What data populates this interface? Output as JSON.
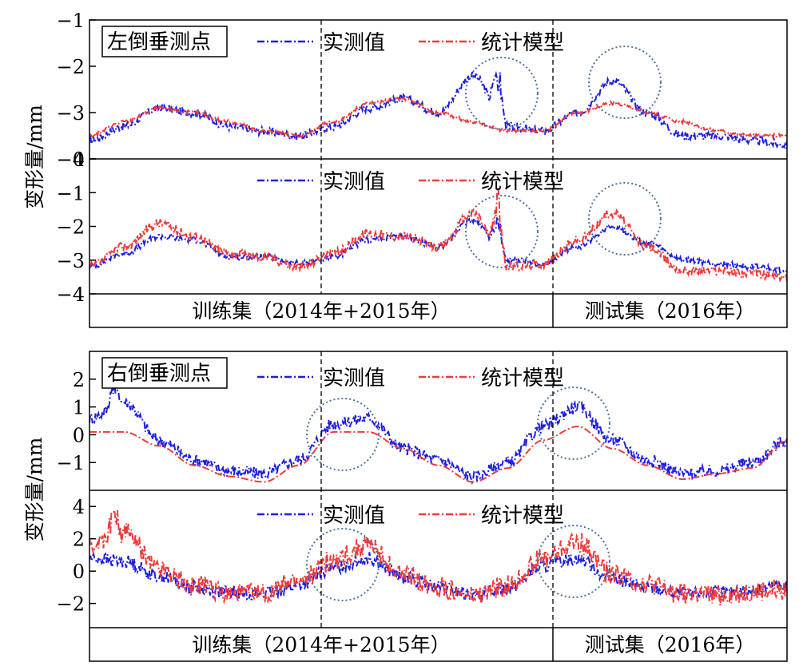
{
  "colors": {
    "measured": "#1f1fe0",
    "model": "#ee3a3a",
    "circle": "#4a6fa0",
    "axis": "#000000"
  },
  "chart_data": [
    {
      "type": "line",
      "title": "左倒垂测点",
      "ylabel": "变形量/mm",
      "periods": [
        "训练集（2014年+2015年）",
        "测试集（2016年）"
      ],
      "subplots": [
        {
          "ylim": [
            -4,
            -1
          ],
          "ytick_values": [
            -1,
            -2,
            -3,
            -4
          ],
          "ytick_labels": [
            "−1",
            "−2",
            "−3",
            "−4"
          ],
          "legend": [
            "实测值",
            "统计模型"
          ],
          "series": [
            {
              "name": "实测值",
              "x": [
                0,
                0.05,
                0.1,
                0.15,
                0.2,
                0.25,
                0.3,
                0.35,
                0.4,
                0.45,
                0.5,
                0.55,
                0.6,
                0.65,
                0.7,
                0.75,
                0.8,
                0.85,
                0.9,
                0.95,
                1.0
              ],
              "y": [
                -3.6,
                -3.3,
                -2.9,
                -3.0,
                -3.3,
                -3.4,
                -3.5,
                -3.3,
                -2.9,
                -2.7,
                -3.0,
                -2.2,
                -3.3,
                -3.4,
                -3.0,
                -2.3,
                -3.0,
                -3.5,
                -3.5,
                -3.6,
                -3.7
              ]
            },
            {
              "name": "统计模型",
              "x": [
                0,
                0.05,
                0.1,
                0.15,
                0.2,
                0.25,
                0.3,
                0.35,
                0.4,
                0.45,
                0.5,
                0.55,
                0.6,
                0.65,
                0.7,
                0.75,
                0.8,
                0.85,
                0.9,
                0.95,
                1.0
              ],
              "y": [
                -3.5,
                -3.2,
                -2.9,
                -3.0,
                -3.2,
                -3.4,
                -3.5,
                -3.2,
                -2.8,
                -2.7,
                -3.0,
                -3.2,
                -3.4,
                -3.4,
                -3.0,
                -2.8,
                -3.0,
                -3.2,
                -3.4,
                -3.5,
                -3.5
              ]
            }
          ]
        },
        {
          "ylim": [
            -4,
            0
          ],
          "ytick_values": [
            0,
            -1,
            -2,
            -3,
            -4
          ],
          "ytick_labels": [
            "0",
            "−1",
            "−2",
            "−3",
            "−4"
          ],
          "legend": [
            "实测值",
            "统计模型"
          ],
          "series": [
            {
              "name": "实测值",
              "x": [
                0,
                0.05,
                0.1,
                0.15,
                0.2,
                0.25,
                0.3,
                0.35,
                0.4,
                0.45,
                0.5,
                0.55,
                0.6,
                0.65,
                0.7,
                0.75,
                0.8,
                0.85,
                0.9,
                0.95,
                1.0
              ],
              "y": [
                -3.2,
                -2.8,
                -2.3,
                -2.4,
                -2.9,
                -2.9,
                -3.1,
                -2.9,
                -2.4,
                -2.3,
                -2.6,
                -1.8,
                -3.0,
                -3.1,
                -2.6,
                -2.0,
                -2.5,
                -3.0,
                -3.1,
                -3.2,
                -3.3
              ]
            },
            {
              "name": "统计模型",
              "x": [
                0,
                0.05,
                0.1,
                0.15,
                0.2,
                0.25,
                0.3,
                0.35,
                0.4,
                0.45,
                0.5,
                0.55,
                0.6,
                0.65,
                0.7,
                0.75,
                0.8,
                0.85,
                0.9,
                0.95,
                1.0
              ],
              "y": [
                -3.2,
                -2.6,
                -1.9,
                -2.3,
                -2.8,
                -2.9,
                -3.2,
                -2.8,
                -2.2,
                -2.3,
                -2.6,
                -1.6,
                -3.2,
                -3.1,
                -2.4,
                -1.6,
                -2.6,
                -3.3,
                -3.3,
                -3.4,
                -3.5
              ]
            }
          ]
        }
      ]
    },
    {
      "type": "line",
      "title": "右倒垂测点",
      "ylabel": "变形量/mm",
      "periods": [
        "训练集（2014年+2015年）",
        "测试集（2016年）"
      ],
      "subplots": [
        {
          "ylim": [
            -2,
            3
          ],
          "ytick_values": [
            2,
            1,
            0,
            -1
          ],
          "ytick_labels": [
            "2",
            "1",
            "0",
            "−1"
          ],
          "legend": [
            "实测值",
            "统计模型"
          ],
          "series": [
            {
              "name": "实测值",
              "x": [
                0,
                0.05,
                0.1,
                0.15,
                0.2,
                0.25,
                0.3,
                0.35,
                0.4,
                0.45,
                0.5,
                0.55,
                0.6,
                0.65,
                0.7,
                0.75,
                0.8,
                0.85,
                0.9,
                0.95,
                1.0
              ],
              "y": [
                0.6,
                1.2,
                -0.2,
                -0.9,
                -1.3,
                -1.4,
                -0.9,
                0.4,
                0.6,
                -0.5,
                -0.9,
                -1.5,
                -1.0,
                0.3,
                1.0,
                -0.2,
                -0.9,
                -1.4,
                -1.3,
                -1.0,
                -0.2
              ]
            },
            {
              "name": "统计模型",
              "x": [
                0,
                0.05,
                0.1,
                0.15,
                0.2,
                0.25,
                0.3,
                0.35,
                0.4,
                0.45,
                0.5,
                0.55,
                0.6,
                0.65,
                0.7,
                0.75,
                0.8,
                0.85,
                0.9,
                0.95,
                1.0
              ],
              "y": [
                0.1,
                0.1,
                -0.4,
                -1.1,
                -1.5,
                -1.7,
                -1.1,
                0.1,
                0.1,
                -0.5,
                -1.1,
                -1.7,
                -1.2,
                -0.2,
                0.3,
                -0.5,
                -1.1,
                -1.6,
                -1.4,
                -1.2,
                -0.2
              ]
            }
          ]
        },
        {
          "ylim": [
            -3.5,
            5
          ],
          "ytick_values": [
            4,
            2,
            0,
            -2
          ],
          "ytick_labels": [
            "4",
            "2",
            "0",
            "−2"
          ],
          "legend": [
            "实测值",
            "统计模型"
          ],
          "series": [
            {
              "name": "实测值",
              "x": [
                0,
                0.05,
                0.1,
                0.15,
                0.2,
                0.25,
                0.3,
                0.35,
                0.4,
                0.45,
                0.5,
                0.55,
                0.6,
                0.65,
                0.7,
                0.75,
                0.8,
                0.85,
                0.9,
                0.95,
                1.0
              ],
              "y": [
                0.8,
                0.6,
                -0.3,
                -1.0,
                -1.3,
                -1.4,
                -0.9,
                0.2,
                0.8,
                -0.4,
                -1.0,
                -1.5,
                -1.0,
                0.3,
                0.8,
                -0.5,
                -1.0,
                -1.4,
                -1.3,
                -1.2,
                -0.8
              ]
            },
            {
              "name": "统计模型",
              "x": [
                0,
                0.05,
                0.1,
                0.15,
                0.2,
                0.25,
                0.3,
                0.35,
                0.4,
                0.45,
                0.5,
                0.55,
                0.6,
                0.65,
                0.7,
                0.75,
                0.8,
                0.85,
                0.9,
                0.95,
                1.0
              ],
              "y": [
                1.5,
                2.4,
                0.2,
                -0.9,
                -1.3,
                -1.4,
                -0.6,
                0.7,
                1.6,
                -0.3,
                -1.0,
                -1.6,
                -0.9,
                0.8,
                1.8,
                -0.2,
                -0.8,
                -1.4,
                -1.5,
                -1.3,
                -1.1
              ]
            }
          ]
        }
      ]
    }
  ]
}
